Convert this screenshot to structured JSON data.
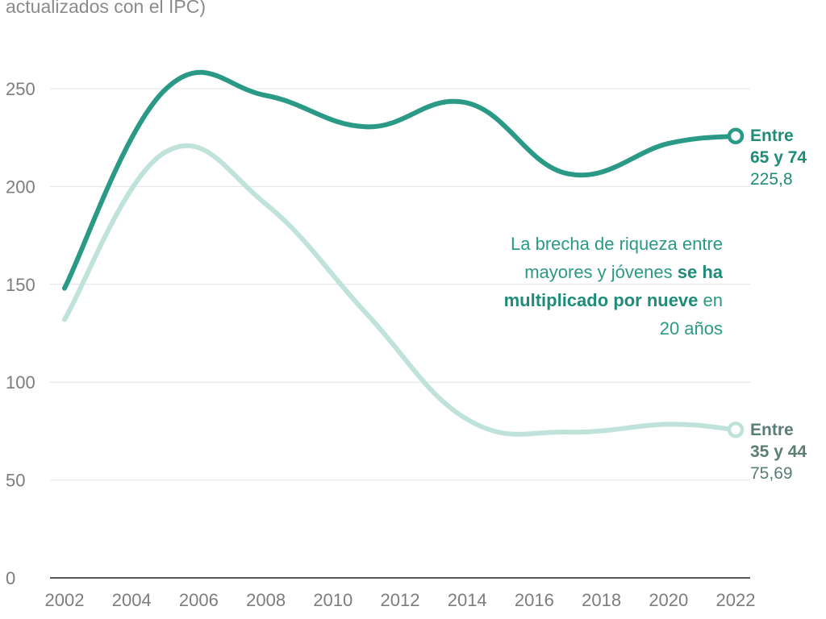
{
  "subtitle": {
    "line1": "",
    "line2": "actualizados con el IPC)"
  },
  "chart_data": {
    "type": "line",
    "x": [
      2002,
      2005,
      2008,
      2011,
      2014,
      2017,
      2020,
      2022
    ],
    "xticks": [
      "2002",
      "2004",
      "2006",
      "2008",
      "2010",
      "2012",
      "2014",
      "2016",
      "2018",
      "2020",
      "2022"
    ],
    "xlim": [
      2002,
      2022
    ],
    "yticks": [
      "0",
      "50",
      "100",
      "150",
      "200",
      "250"
    ],
    "ylim": [
      0,
      250
    ],
    "grid": true,
    "series": [
      {
        "name": "Entre 65 y 74",
        "values": [
          148,
          249.5,
          246.5,
          230.5,
          242.7,
          206.5,
          222,
          225.8
        ],
        "color": "#2a9a86",
        "end_label_line1": "Entre",
        "end_label_line2": "65 y 74",
        "end_value": "225,8"
      },
      {
        "name": "Entre 35 y 44",
        "values": [
          132,
          217.5,
          191,
          135,
          81,
          74.5,
          78.5,
          75.69
        ],
        "color": "#bfe3da",
        "end_label_line1": "Entre",
        "end_label_line2": "35 y 44",
        "end_value": "75,69"
      }
    ],
    "annotation": {
      "line1": "La brecha de riqueza entre",
      "line2a": "mayores y jóvenes ",
      "line2b": "se ha",
      "line3a": "multiplicado por nueve",
      "line3b": " en",
      "line4": "20 años"
    }
  }
}
